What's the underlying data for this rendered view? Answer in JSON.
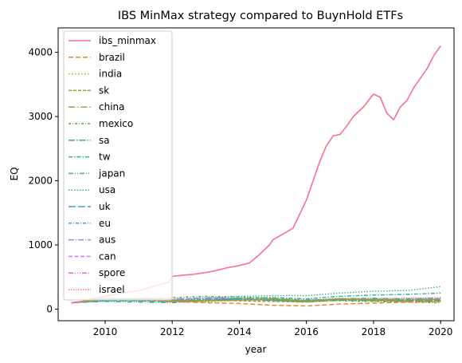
{
  "chart_data": {
    "type": "line",
    "title": "IBS MinMax strategy compared to BuynHold ETFs",
    "xlabel": "year",
    "ylabel": "EQ",
    "xlim": [
      2008.6,
      2020.4
    ],
    "ylim": [
      -180,
      4380
    ],
    "xticks": [
      2010,
      2012,
      2014,
      2016,
      2018,
      2020
    ],
    "yticks": [
      0,
      1000,
      2000,
      3000,
      4000
    ],
    "grid": false,
    "legend_position": "upper-left",
    "series": [
      {
        "name": "ibs_minmax",
        "color": "#f77189",
        "dash": "",
        "x": [
          2009.0,
          2009.3,
          2009.6,
          2010.0,
          2010.3,
          2010.6,
          2011.0,
          2011.3,
          2011.6,
          2011.9,
          2012.0,
          2012.3,
          2012.6,
          2013.0,
          2013.3,
          2013.6,
          2014.0,
          2014.3,
          2014.6,
          2014.9,
          2015.0,
          2015.2,
          2015.4,
          2015.6,
          2015.8,
          2016.0,
          2016.2,
          2016.4,
          2016.6,
          2016.8,
          2017.0,
          2017.2,
          2017.4,
          2017.7,
          2018.0,
          2018.2,
          2018.4,
          2018.6,
          2018.8,
          2019.0,
          2019.2,
          2019.4,
          2019.6,
          2019.8,
          2020.0
        ],
        "values": [
          100,
          120,
          160,
          200,
          230,
          260,
          290,
          330,
          380,
          420,
          510,
          530,
          540,
          570,
          600,
          640,
          680,
          720,
          850,
          1000,
          1080,
          1140,
          1200,
          1260,
          1480,
          1700,
          2000,
          2300,
          2550,
          2700,
          2720,
          2850,
          3000,
          3150,
          3350,
          3300,
          3050,
          2950,
          3150,
          3250,
          3450,
          3600,
          3750,
          3950,
          4100
        ]
      },
      {
        "name": "brazil",
        "color": "#e8812f",
        "dash": "6,3",
        "x": [
          2009.0,
          2010.0,
          2011.0,
          2012.0,
          2013.0,
          2014.0,
          2015.0,
          2016.0,
          2017.0,
          2018.0,
          2019.0,
          2020.0
        ],
        "values": [
          100,
          160,
          140,
          120,
          100,
          90,
          60,
          50,
          80,
          95,
          110,
          120
        ]
      },
      {
        "name": "india",
        "color": "#c39532",
        "dash": "1.5,2.5",
        "x": [
          2009.0,
          2010.0,
          2011.0,
          2012.0,
          2013.0,
          2014.0,
          2015.0,
          2016.0,
          2017.0,
          2018.0,
          2019.0,
          2020.0
        ],
        "values": [
          100,
          170,
          160,
          120,
          110,
          140,
          150,
          130,
          170,
          160,
          150,
          160
        ]
      },
      {
        "name": "sk",
        "color": "#a39d31",
        "dash": "4,2",
        "x": [
          2009.0,
          2010.0,
          2011.0,
          2012.0,
          2013.0,
          2014.0,
          2015.0,
          2016.0,
          2017.0,
          2018.0,
          2019.0,
          2020.0
        ],
        "values": [
          100,
          150,
          170,
          140,
          140,
          130,
          120,
          110,
          150,
          140,
          120,
          130
        ]
      },
      {
        "name": "china",
        "color": "#8ea531",
        "dash": "8,3,1.5,3",
        "x": [
          2009.0,
          2010.0,
          2011.0,
          2012.0,
          2013.0,
          2014.0,
          2015.0,
          2016.0,
          2017.0,
          2018.0,
          2019.0,
          2020.0
        ],
        "values": [
          100,
          160,
          150,
          130,
          130,
          140,
          160,
          120,
          160,
          150,
          140,
          150
        ]
      },
      {
        "name": "mexico",
        "color": "#5ba734",
        "dash": "3,2,1,2",
        "x": [
          2009.0,
          2010.0,
          2011.0,
          2012.0,
          2013.0,
          2014.0,
          2015.0,
          2016.0,
          2017.0,
          2018.0,
          2019.0,
          2020.0
        ],
        "values": [
          100,
          170,
          160,
          180,
          200,
          190,
          170,
          130,
          130,
          120,
          110,
          100
        ]
      },
      {
        "name": "sa",
        "color": "#33b07a",
        "dash": "8,2,1.5,2",
        "x": [
          2009.0,
          2010.0,
          2011.0,
          2012.0,
          2013.0,
          2014.0,
          2015.0,
          2016.0,
          2017.0,
          2018.0,
          2019.0,
          2020.0
        ],
        "values": [
          100,
          150,
          140,
          120,
          130,
          150,
          140,
          110,
          140,
          130,
          120,
          120
        ]
      },
      {
        "name": "tw",
        "color": "#35ad9c",
        "dash": "5,2,1.5,2",
        "x": [
          2009.0,
          2010.0,
          2011.0,
          2012.0,
          2013.0,
          2014.0,
          2015.0,
          2016.0,
          2017.0,
          2018.0,
          2019.0,
          2020.0
        ],
        "values": [
          100,
          140,
          150,
          130,
          150,
          170,
          180,
          160,
          200,
          220,
          230,
          250
        ]
      },
      {
        "name": "japan",
        "color": "#36ada4",
        "dash": "6,2,1,2,1,2",
        "x": [
          2009.0,
          2010.0,
          2011.0,
          2012.0,
          2013.0,
          2014.0,
          2015.0,
          2016.0,
          2017.0,
          2018.0,
          2019.0,
          2020.0
        ],
        "values": [
          100,
          120,
          110,
          100,
          130,
          140,
          150,
          140,
          160,
          170,
          160,
          170
        ]
      },
      {
        "name": "usa",
        "color": "#38aaac",
        "dash": "1.5,2",
        "x": [
          2009.0,
          2010.0,
          2011.0,
          2012.0,
          2013.0,
          2014.0,
          2015.0,
          2016.0,
          2017.0,
          2018.0,
          2019.0,
          2020.0
        ],
        "values": [
          100,
          130,
          140,
          140,
          170,
          200,
          210,
          210,
          250,
          280,
          290,
          350
        ]
      },
      {
        "name": "uk",
        "color": "#39a7b9",
        "dash": "9,3",
        "x": [
          2009.0,
          2010.0,
          2011.0,
          2012.0,
          2013.0,
          2014.0,
          2015.0,
          2016.0,
          2017.0,
          2018.0,
          2019.0,
          2020.0
        ],
        "values": [
          100,
          130,
          130,
          120,
          140,
          150,
          140,
          120,
          140,
          140,
          130,
          140
        ]
      },
      {
        "name": "eu",
        "color": "#3ba3d6",
        "dash": "4,2,1,2",
        "x": [
          2009.0,
          2010.0,
          2011.0,
          2012.0,
          2013.0,
          2014.0,
          2015.0,
          2016.0,
          2017.0,
          2018.0,
          2019.0,
          2020.0
        ],
        "values": [
          100,
          140,
          130,
          110,
          140,
          160,
          150,
          130,
          160,
          150,
          140,
          160
        ]
      },
      {
        "name": "aus",
        "color": "#8c94f2",
        "dash": "7,2,1,2",
        "x": [
          2009.0,
          2010.0,
          2011.0,
          2012.0,
          2013.0,
          2014.0,
          2015.0,
          2016.0,
          2017.0,
          2018.0,
          2019.0,
          2020.0
        ],
        "values": [
          100,
          170,
          170,
          160,
          170,
          160,
          130,
          120,
          150,
          140,
          150,
          160
        ]
      },
      {
        "name": "can",
        "color": "#cc7af4",
        "dash": "5,2.5",
        "x": [
          2009.0,
          2010.0,
          2011.0,
          2012.0,
          2013.0,
          2014.0,
          2015.0,
          2016.0,
          2017.0,
          2018.0,
          2019.0,
          2020.0
        ],
        "values": [
          100,
          150,
          160,
          140,
          150,
          170,
          140,
          130,
          150,
          150,
          140,
          150
        ]
      },
      {
        "name": "spore",
        "color": "#f45fd7",
        "dash": "6,2,1,2,1,2,1,2",
        "x": [
          2009.0,
          2010.0,
          2011.0,
          2012.0,
          2013.0,
          2014.0,
          2015.0,
          2016.0,
          2017.0,
          2018.0,
          2019.0,
          2020.0
        ],
        "values": [
          100,
          170,
          160,
          150,
          180,
          170,
          150,
          130,
          160,
          150,
          140,
          140
        ]
      },
      {
        "name": "israel",
        "color": "#f66bad",
        "dash": "1.5,1.5",
        "x": [
          2009.0,
          2010.0,
          2011.0,
          2012.0,
          2013.0,
          2014.0,
          2015.0,
          2016.0,
          2017.0,
          2018.0,
          2019.0,
          2020.0
        ],
        "values": [
          100,
          140,
          130,
          130,
          140,
          150,
          160,
          150,
          150,
          160,
          170,
          180
        ]
      }
    ]
  }
}
